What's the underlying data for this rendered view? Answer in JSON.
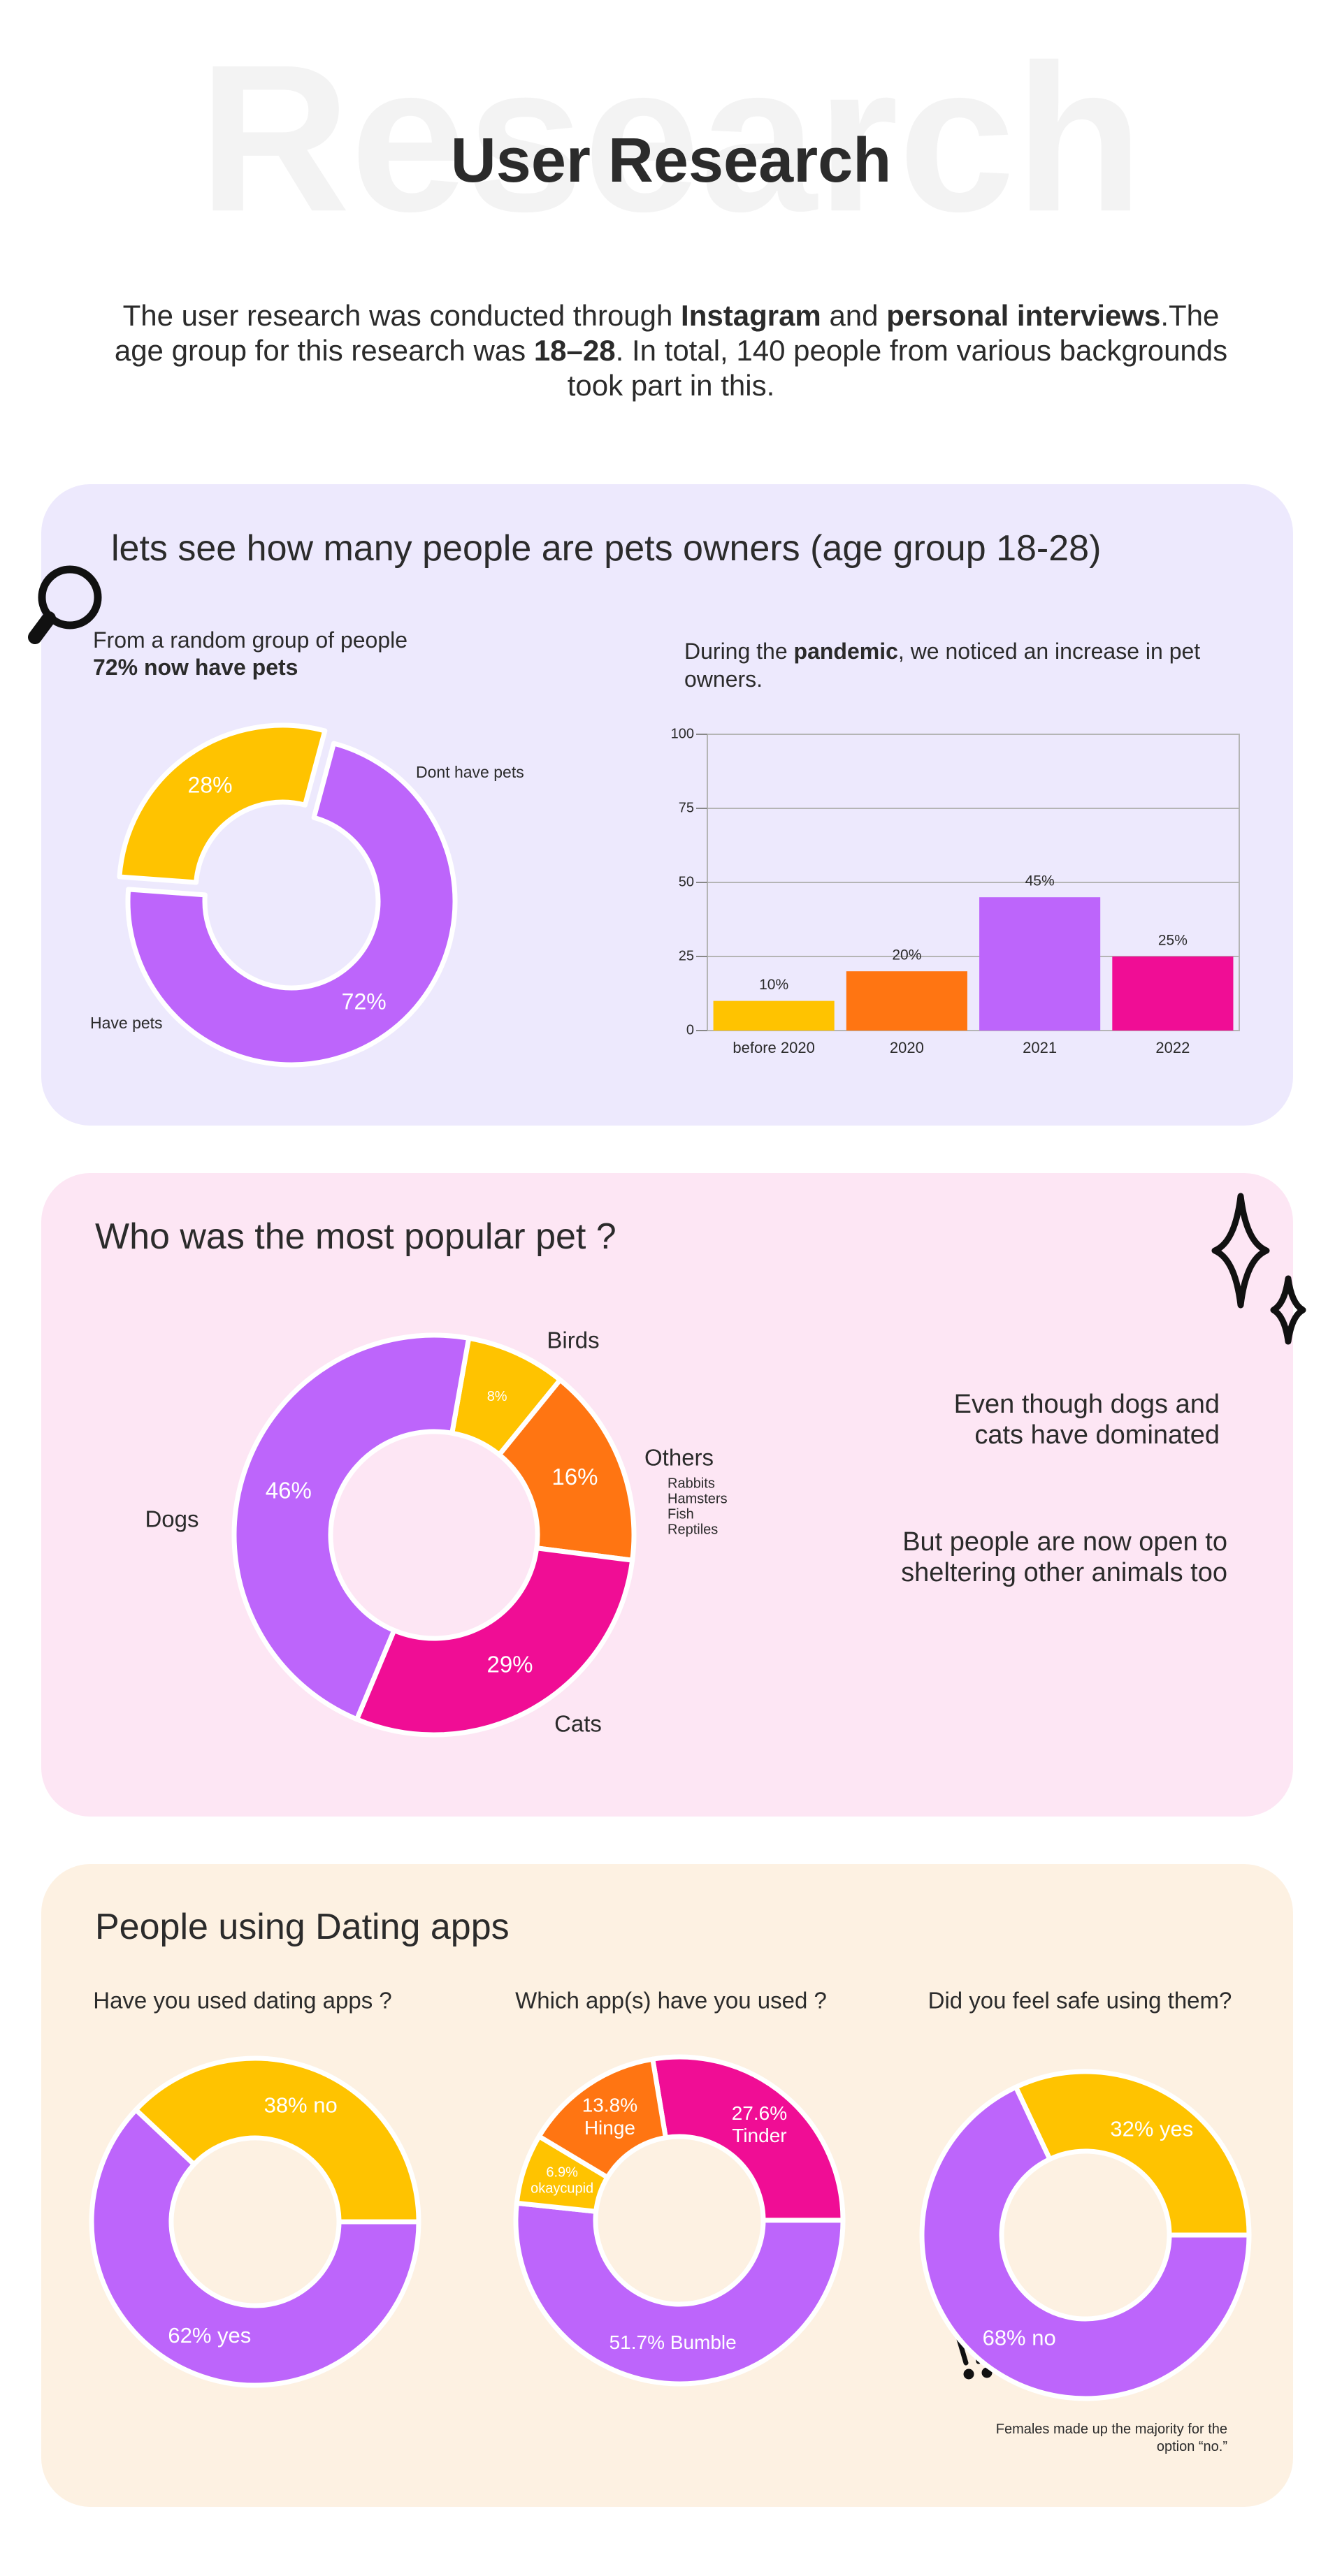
{
  "header": {
    "watermark": "Research",
    "title": "User Research"
  },
  "intro": [
    {
      "text": "The user research was conducted through ",
      "bold": false
    },
    {
      "text": "Instagram",
      "bold": true
    },
    {
      "text": " and ",
      "bold": false
    },
    {
      "text": "personal interviews",
      "bold": true
    },
    {
      "text": ".The age group for this research was ",
      "bold": false
    },
    {
      "text": "18–28",
      "bold": true
    },
    {
      "text": ". In total, 140 people from various backgrounds took part in this.",
      "bold": false
    }
  ],
  "sections": [
    {
      "heading": "lets see how many people are pets owners (age group 18-28)",
      "lead": "From a random group of people",
      "lead_bold": "72% now have pets",
      "aside": [
        {
          "text": "During the ",
          "bold": false
        },
        {
          "text": "pandemic",
          "bold": true
        },
        {
          "text": ", we noticed an increase in pet owners.",
          "bold": false
        }
      ]
    },
    {
      "heading": "Who was the most popular pet ?",
      "notes": [
        "Even though dogs and cats have dominated",
        "But people are now open to sheltering other animals too"
      ]
    },
    {
      "heading": "People using Dating apps"
    }
  ],
  "chart_data": [
    {
      "type": "donut",
      "categories": [
        "Have pets",
        "Dont have pets"
      ],
      "values": [
        72,
        28
      ],
      "value_labels": [
        "72%",
        "28%"
      ],
      "colors": [
        "#bd65fb",
        "#ffc300"
      ]
    },
    {
      "type": "bar",
      "categories": [
        "before 2020",
        "2020",
        "2021",
        "2022"
      ],
      "values": [
        10,
        20,
        45,
        25
      ],
      "value_labels": [
        "10%",
        "20%",
        "45%",
        "25%"
      ],
      "colors": [
        "#ffc300",
        "#ff7512",
        "#bd65fb",
        "#f00d95"
      ],
      "ylim": [
        0,
        100
      ],
      "yticks": [
        0,
        25,
        50,
        75,
        100
      ],
      "grid": true
    },
    {
      "type": "donut",
      "categories": [
        "Birds",
        "Others",
        "Cats",
        "Dogs"
      ],
      "values": [
        8,
        16,
        29,
        46
      ],
      "value_labels": [
        "8%",
        "16%",
        "29%",
        "46%"
      ],
      "colors": [
        "#ffc300",
        "#ff7512",
        "#f00d95",
        "#bd65fb"
      ],
      "others_detail": [
        "Rabbits",
        "Hamsters",
        "Fish",
        "Reptiles"
      ]
    },
    {
      "type": "donut",
      "title": "Have you used dating apps ?",
      "values": [
        38,
        62
      ],
      "value_labels": [
        "38% no",
        "62% yes"
      ],
      "colors": [
        "#ffc300",
        "#bd65fb"
      ]
    },
    {
      "type": "donut",
      "title": "Which app(s) have you used ?",
      "values": [
        27.6,
        51.7,
        6.9,
        13.8
      ],
      "value_labels": [
        "27.6%\nTinder",
        "51.7% Bumble",
        "6.9%\nokaycupid",
        "13.8%\nHinge"
      ],
      "colors": [
        "#f00d95",
        "#bd65fb",
        "#ffc300",
        "#ff7512"
      ]
    },
    {
      "type": "donut",
      "title": "Did you feel safe using them?",
      "values": [
        32,
        68
      ],
      "value_labels": [
        "32% yes",
        "68% no"
      ],
      "colors": [
        "#ffc300",
        "#bd65fb"
      ],
      "note": "Females made up the majority for the option “no.”"
    }
  ]
}
